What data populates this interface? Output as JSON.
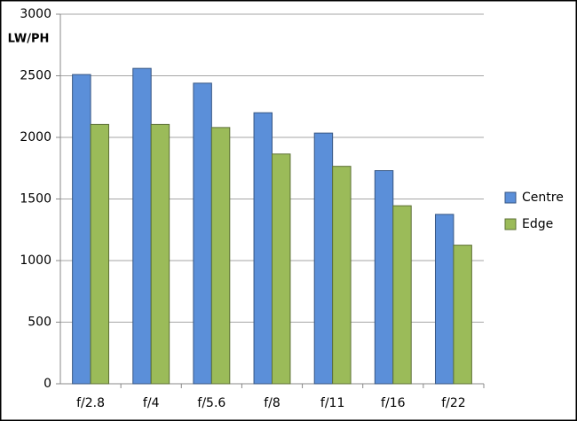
{
  "chart_data": {
    "type": "bar",
    "y_label": "LW/PH",
    "categories": [
      "f/2.8",
      "f/4",
      "f/5.6",
      "f/8",
      "f/11",
      "f/16",
      "f/22"
    ],
    "series": [
      {
        "name": "Centre",
        "color": "#5b8fd9",
        "values": [
          2510,
          2560,
          2440,
          2200,
          2035,
          1730,
          1375
        ]
      },
      {
        "name": "Edge",
        "color": "#9bbb59",
        "values": [
          2105,
          2105,
          2080,
          1865,
          1765,
          1445,
          1125
        ]
      }
    ],
    "ylim": [
      0,
      3000
    ],
    "yticks": [
      0,
      500,
      1000,
      1500,
      2000,
      2500,
      3000
    ],
    "grid": true
  }
}
